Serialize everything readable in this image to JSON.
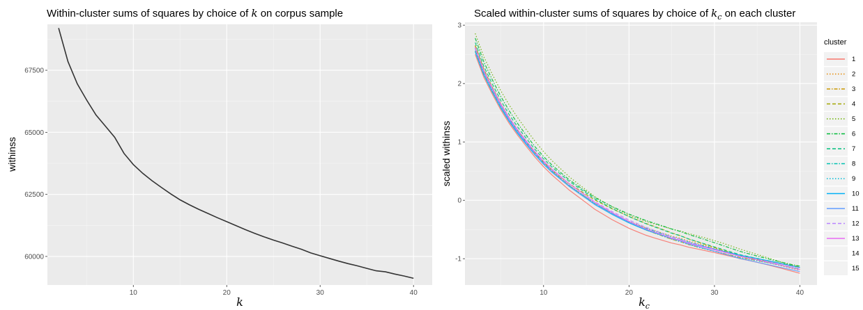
{
  "chart_data": [
    {
      "type": "line",
      "title_prefix": "Within-cluster sums of squares by choice of ",
      "title_var": "k",
      "title_suffix": " on corpus sample",
      "xlabel": "k",
      "ylabel": "withinss",
      "xlim": [
        0.8,
        42
      ],
      "ylim": [
        58850,
        69350
      ],
      "xticks": [
        10,
        20,
        30,
        40
      ],
      "yticks": [
        60000,
        62500,
        65000,
        67500
      ],
      "grid": true,
      "series": [
        {
          "color": "#333333",
          "x": [
            2,
            3,
            4,
            5,
            6,
            7,
            8,
            9,
            10,
            11,
            12,
            13,
            14,
            15,
            16,
            17,
            18,
            19,
            20,
            21,
            22,
            23,
            24,
            25,
            26,
            27,
            28,
            29,
            30,
            31,
            32,
            33,
            34,
            35,
            36,
            37,
            38,
            39,
            40
          ],
          "values": [
            69200,
            67850,
            66950,
            66300,
            65700,
            65250,
            64800,
            64150,
            63700,
            63350,
            63050,
            62780,
            62520,
            62280,
            62080,
            61900,
            61730,
            61560,
            61400,
            61240,
            61080,
            60930,
            60790,
            60660,
            60540,
            60410,
            60290,
            60140,
            60030,
            59920,
            59810,
            59710,
            59620,
            59520,
            59420,
            59380,
            59290,
            59210,
            59120
          ]
        }
      ]
    },
    {
      "type": "line",
      "title_prefix": "Scaled within-cluster sums of squares by choice of ",
      "title_var": "k",
      "title_sub": "c",
      "title_suffix": " on each cluster",
      "xlabel": "k",
      "xlabel_sub": "c",
      "ylabel": "scaled withinss",
      "xlim": [
        0.8,
        42
      ],
      "ylim": [
        -1.45,
        3.05
      ],
      "xticks": [
        10,
        20,
        30,
        40
      ],
      "yticks": [
        -1,
        0,
        1,
        2,
        3
      ],
      "grid": true,
      "legend": {
        "title": "cluster",
        "position": "right"
      },
      "x": [
        2,
        3,
        4,
        5,
        6,
        7,
        8,
        9,
        10,
        11,
        12,
        13,
        14,
        15,
        16,
        17,
        18,
        19,
        20,
        21,
        22,
        23,
        24,
        25,
        26,
        27,
        28,
        29,
        30,
        31,
        32,
        33,
        34,
        35,
        36,
        37,
        38,
        39,
        40
      ],
      "base_values": [
        2.6,
        2.2,
        1.9,
        1.62,
        1.38,
        1.17,
        0.98,
        0.8,
        0.64,
        0.5,
        0.38,
        0.26,
        0.16,
        0.06,
        -0.04,
        -0.12,
        -0.2,
        -0.27,
        -0.34,
        -0.4,
        -0.46,
        -0.51,
        -0.56,
        -0.61,
        -0.65,
        -0.7,
        -0.74,
        -0.78,
        -0.82,
        -0.86,
        -0.9,
        -0.94,
        -0.97,
        -1.0,
        -1.03,
        -1.06,
        -1.09,
        -1.12,
        -1.15
      ],
      "series": [
        {
          "name": "1",
          "color": "#F8766D",
          "dash": "solid",
          "first": 2.5,
          "last": -1.25,
          "bump": 0.04
        },
        {
          "name": "2",
          "color": "#E58700",
          "dash": "dotted",
          "first": 2.62,
          "last": -1.18,
          "bump": 0.02
        },
        {
          "name": "3",
          "color": "#C99800",
          "dash": "dashdot",
          "first": 2.58,
          "last": -1.2,
          "bump": -0.02
        },
        {
          "name": "4",
          "color": "#A3A500",
          "dash": "dashed",
          "first": 2.65,
          "last": -1.13,
          "bump": 0.03
        },
        {
          "name": "5",
          "color": "#6BB100",
          "dash": "dotted",
          "first": 2.82,
          "last": -1.12,
          "bump": -0.05
        },
        {
          "name": "6",
          "color": "#00BA38",
          "dash": "dashdot",
          "first": 2.75,
          "last": -1.1,
          "bump": -0.03
        },
        {
          "name": "7",
          "color": "#00BF7D",
          "dash": "dashed",
          "first": 2.7,
          "last": -1.15,
          "bump": -0.01
        },
        {
          "name": "8",
          "color": "#00C0AF",
          "dash": "dashdot",
          "first": 2.6,
          "last": -1.18,
          "bump": 0.01
        },
        {
          "name": "9",
          "color": "#00BCD8",
          "dash": "dotted",
          "first": 2.58,
          "last": -1.2,
          "bump": -0.02
        },
        {
          "name": "10",
          "color": "#00B0F6",
          "dash": "solid",
          "first": 2.55,
          "last": -1.16,
          "bump": -0.02
        },
        {
          "name": "11",
          "color": "#619CFF",
          "dash": "solid",
          "first": 2.6,
          "last": -1.22,
          "bump": 0.0
        },
        {
          "name": "12",
          "color": "#B983FF",
          "dash": "dashed",
          "first": 2.62,
          "last": -1.17,
          "bump": 0.01
        },
        {
          "name": "13",
          "color": "#E76BF3",
          "dash": "solid",
          "first": 2.63,
          "last": -1.2,
          "bump": 0.02
        },
        {
          "name": "14",
          "color": "#FD61D1",
          "dash": "none",
          "first": 2.6,
          "last": -1.18,
          "bump": 0.0
        },
        {
          "name": "15",
          "color": "#FF67A4",
          "dash": "none",
          "first": 2.6,
          "last": -1.18,
          "bump": 0.0
        }
      ]
    }
  ]
}
